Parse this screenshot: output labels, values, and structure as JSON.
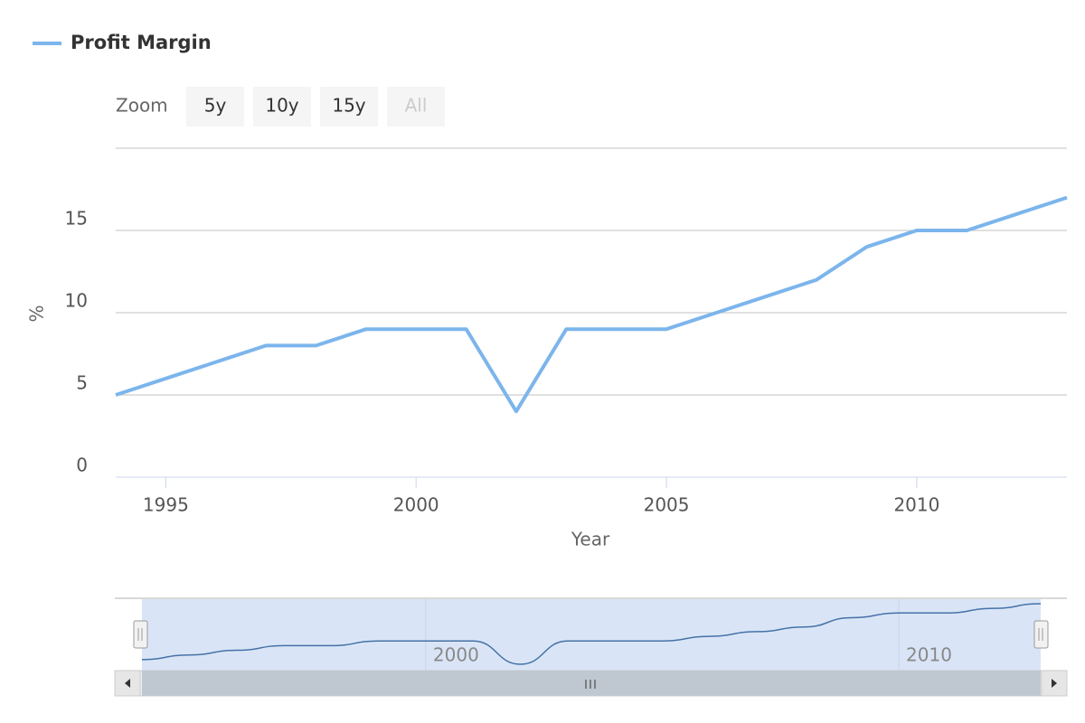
{
  "chart_data": {
    "type": "line",
    "x": [
      1994,
      1995,
      1996,
      1997,
      1998,
      1999,
      2000,
      2001,
      2002,
      2003,
      2004,
      2005,
      2006,
      2007,
      2008,
      2009,
      2010,
      2011,
      2012,
      2013
    ],
    "series": [
      {
        "name": "Profit Margin",
        "color": "#7cb5ec",
        "values": [
          5,
          6,
          7,
          8,
          8,
          9,
          9,
          9,
          4,
          9,
          9,
          9,
          10,
          11,
          12,
          14,
          15,
          15,
          16,
          17
        ]
      }
    ],
    "xlabel": "Year",
    "ylabel": "%",
    "xlim": [
      1994,
      2013
    ],
    "xticks": [
      1995,
      2000,
      2005,
      2010
    ],
    "ylim": [
      0,
      20
    ],
    "yticks": [
      0,
      5,
      10,
      15
    ],
    "grid": true,
    "legend": "top-left",
    "range_selector": {
      "label": "Zoom",
      "buttons": [
        "5y",
        "10y",
        "15y",
        "All"
      ]
    },
    "navigator": {
      "xticks": [
        2000,
        2010
      ],
      "color": "#4572a7"
    }
  }
}
